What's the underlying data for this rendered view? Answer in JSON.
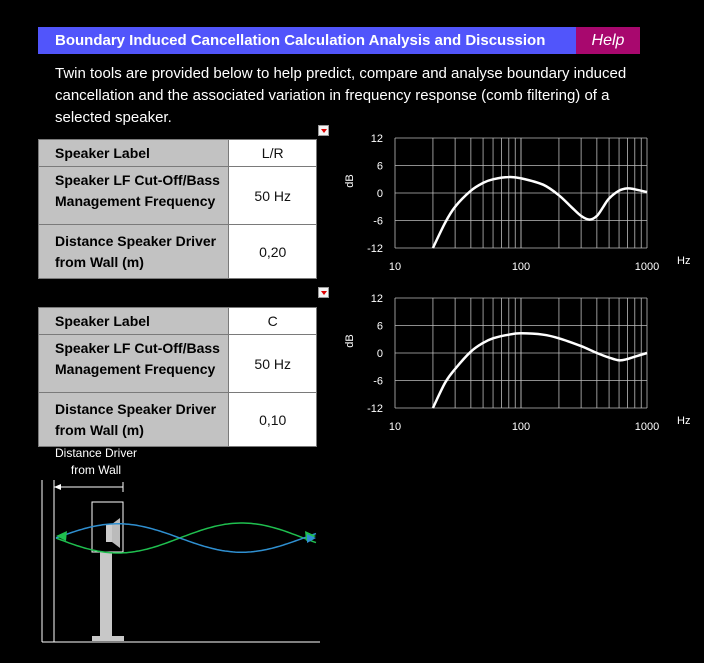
{
  "header": {
    "title": "Boundary Induced Cancellation Calculation Analysis and Discussion",
    "help_label": "Help"
  },
  "intro_text": "Twin tools are provided below to help predict, compare and analyse boundary induced cancellation and the associated variation in frequency response (comb filtering) of a selected speaker.",
  "tool1": {
    "rows": [
      {
        "label": "Speaker Label",
        "value": "L/R"
      },
      {
        "label": "Speaker LF Cut-Off/Bass Management Frequency",
        "value": "50 Hz"
      },
      {
        "label": "Distance Speaker Driver from Wall (m)",
        "value": "0,20"
      }
    ]
  },
  "tool2": {
    "rows": [
      {
        "label": "Speaker Label",
        "value": "C"
      },
      {
        "label": "Speaker LF Cut-Off/Bass Management Frequency",
        "value": "50 Hz"
      },
      {
        "label": "Distance Speaker Driver from Wall (m)",
        "value": "0,10"
      }
    ]
  },
  "diagram": {
    "caption": "Distance Driver from Wall",
    "colors": {
      "reflected": "#1fbf4f",
      "direct": "#2f8fd0"
    }
  },
  "chart_data": [
    {
      "type": "line",
      "xlabel": "Hz",
      "ylabel": "dB",
      "x_scale": "log",
      "xlim": [
        10,
        1000
      ],
      "ylim": [
        -12,
        12
      ],
      "x_ticks": [
        "10",
        "100",
        "1000"
      ],
      "y_ticks": [
        "12",
        "6",
        "0",
        "-6",
        "-12"
      ],
      "grid": true,
      "series": [
        {
          "color": "#ffffff",
          "x": [
            20,
            25,
            30,
            40,
            50,
            60,
            80,
            100,
            150,
            200,
            250,
            300,
            350,
            400,
            450,
            500,
            600,
            700,
            800,
            1000
          ],
          "y": [
            -12,
            -6.5,
            -3,
            0.5,
            2.2,
            3.0,
            3.5,
            3.2,
            1.8,
            -0.5,
            -3.0,
            -5.0,
            -5.8,
            -5.0,
            -3.0,
            -1.2,
            0.5,
            1.0,
            0.8,
            0.2
          ]
        }
      ]
    },
    {
      "type": "line",
      "xlabel": "Hz",
      "ylabel": "dB",
      "x_scale": "log",
      "xlim": [
        10,
        1000
      ],
      "ylim": [
        -12,
        12
      ],
      "x_ticks": [
        "10",
        "100",
        "1000"
      ],
      "y_ticks": [
        "12",
        "6",
        "0",
        "-6",
        "-12"
      ],
      "grid": true,
      "series": [
        {
          "color": "#ffffff",
          "x": [
            20,
            25,
            30,
            40,
            50,
            60,
            80,
            100,
            150,
            200,
            300,
            400,
            500,
            600,
            700,
            800,
            1000
          ],
          "y": [
            -12,
            -6.5,
            -3.5,
            0.3,
            2.2,
            3.2,
            4.0,
            4.3,
            4.0,
            3.2,
            1.5,
            0.0,
            -1.0,
            -1.6,
            -1.3,
            -0.8,
            0.0
          ]
        }
      ]
    }
  ]
}
